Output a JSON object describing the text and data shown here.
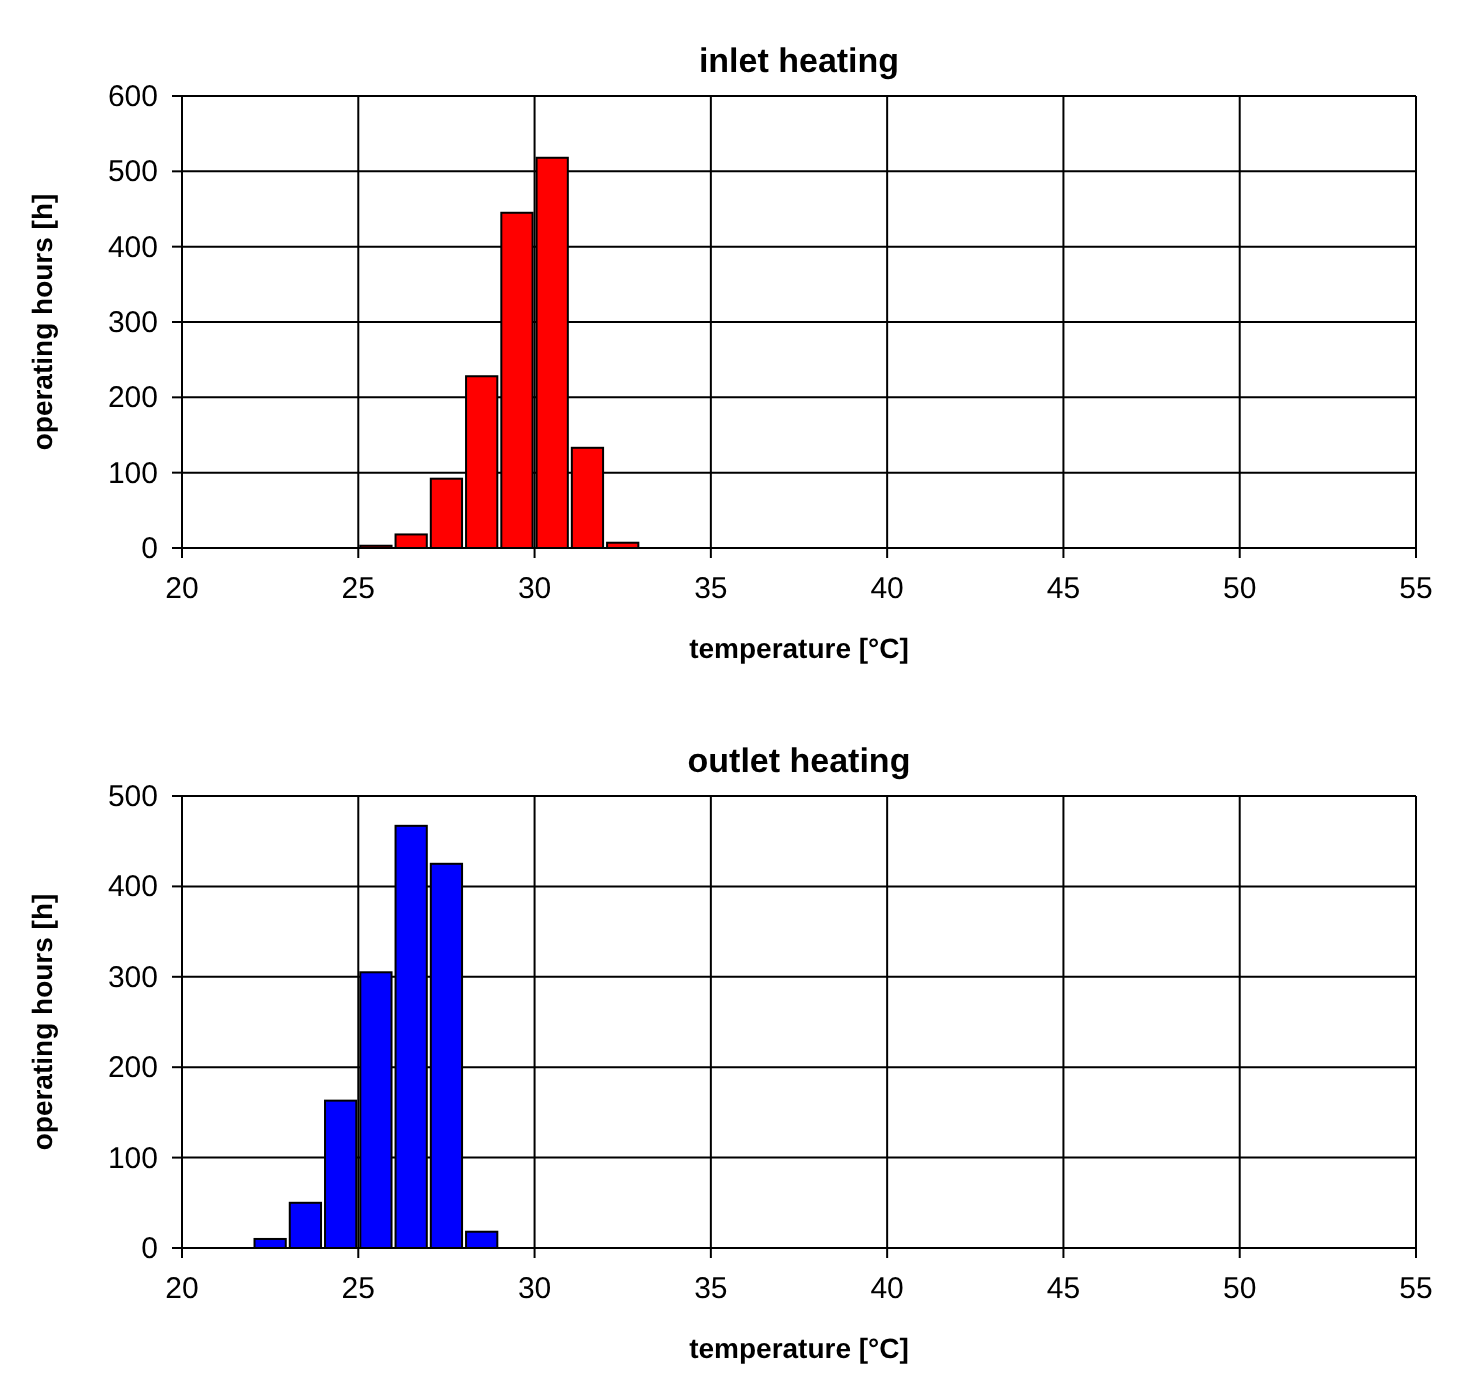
{
  "chart_data": [
    {
      "type": "histogram",
      "title": "inlet heating",
      "xlabel": "temperature [°C]",
      "ylabel": "operating hours [h]",
      "bins": [
        25,
        26,
        27,
        28,
        29,
        30,
        31,
        32,
        33
      ],
      "values": [
        3,
        18,
        92,
        228,
        445,
        518,
        133,
        7
      ],
      "color": "#ff0000",
      "xlim": [
        20,
        55
      ],
      "xticks": [
        20,
        25,
        30,
        35,
        40,
        45,
        50,
        55
      ],
      "ylim": [
        0,
        600
      ],
      "yticks": [
        0,
        100,
        200,
        300,
        400,
        500,
        600
      ],
      "grid": true
    },
    {
      "type": "histogram",
      "title": "outlet heating",
      "xlabel": "temperature [°C]",
      "ylabel": "operating hours [h]",
      "bins": [
        22,
        23,
        24,
        25,
        26,
        27,
        28,
        29
      ],
      "values": [
        10,
        50,
        163,
        305,
        467,
        425,
        18
      ],
      "color": "#0000ff",
      "xlim": [
        20,
        55
      ],
      "xticks": [
        20,
        25,
        30,
        35,
        40,
        45,
        50,
        55
      ],
      "ylim": [
        0,
        500
      ],
      "yticks": [
        0,
        100,
        200,
        300,
        400,
        500
      ],
      "grid": true
    }
  ]
}
